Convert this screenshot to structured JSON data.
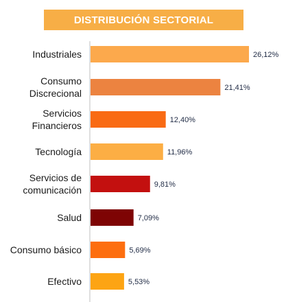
{
  "chart_data": {
    "type": "bar",
    "orientation": "horizontal",
    "title": "DISTRIBUCIÓN SECTORIAL",
    "categories": [
      [
        "Industriales"
      ],
      [
        "Consumo",
        "Discrecional"
      ],
      [
        "Servicios",
        "Financieros"
      ],
      [
        "Tecnología"
      ],
      [
        "Servicios de",
        "comunicación"
      ],
      [
        "Salud"
      ],
      [
        "Consumo básico"
      ],
      [
        "Efectivo"
      ]
    ],
    "values": [
      26.12,
      21.41,
      12.4,
      11.96,
      9.81,
      7.09,
      5.69,
      5.53
    ],
    "value_labels": [
      "26,12%",
      "21,41%",
      "12,40%",
      "11,96%",
      "9,81%",
      "7,09%",
      "5,69%",
      "5,53%"
    ],
    "colors": [
      "#fca94c",
      "#ec8340",
      "#f96b14",
      "#fcae44",
      "#c3100f",
      "#7e0404",
      "#fd6e0f",
      "#fda413"
    ],
    "title_color": "#f7ae46",
    "axis_color": "#bfbfbf"
  }
}
